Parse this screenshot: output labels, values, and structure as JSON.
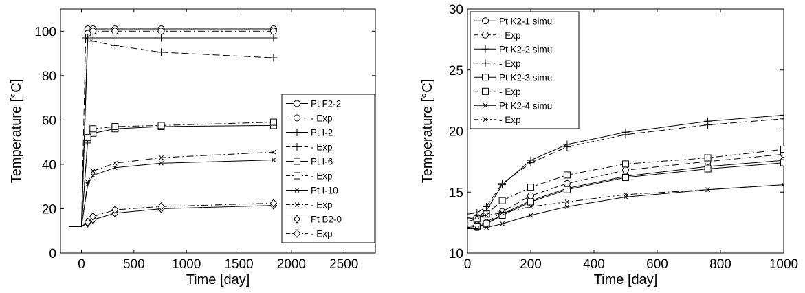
{
  "chart_data": [
    {
      "type": "line",
      "xlabel": "Time [day]",
      "ylabel": "Temperature [°C]",
      "xlim": [
        -200,
        2800
      ],
      "ylim": [
        0,
        110
      ],
      "xticks": [
        0,
        500,
        1000,
        1500,
        2000,
        2500
      ],
      "yticks": [
        0,
        20,
        40,
        60,
        80,
        100
      ],
      "grid": false,
      "legend_position": "right",
      "series": [
        {
          "name": "Pt F2-2",
          "marker": "circle",
          "dash": "solid",
          "x": [
            -120,
            0,
            60,
            110,
            320,
            760,
            1830
          ],
          "y": [
            12,
            12,
            101,
            101,
            101,
            101,
            101
          ]
        },
        {
          "name": "- Exp",
          "marker": "circle",
          "dash": "dashdot",
          "x": [
            -120,
            0,
            60,
            110,
            320,
            760,
            1830
          ],
          "y": [
            12,
            12,
            99,
            100,
            100,
            100,
            100
          ]
        },
        {
          "name": "Pt I-2",
          "marker": "plus",
          "dash": "solid",
          "x": [
            -120,
            0,
            60,
            110,
            320,
            760,
            1830
          ],
          "y": [
            12,
            12,
            97,
            97,
            97,
            97,
            97
          ]
        },
        {
          "name": "- Exp",
          "marker": "plus",
          "dash": "dashed",
          "x": [
            -120,
            0,
            40,
            110,
            320,
            760,
            1830
          ],
          "y": [
            12,
            12,
            97,
            95.5,
            93.5,
            90.5,
            88
          ]
        },
        {
          "name": "Pt I-6",
          "marker": "square",
          "dash": "solid",
          "x": [
            -120,
            0,
            60,
            110,
            320,
            760,
            1830
          ],
          "y": [
            12,
            12,
            51,
            54,
            56,
            57,
            57.5
          ]
        },
        {
          "name": "- Exp",
          "marker": "square",
          "dash": "dashdot",
          "x": [
            -120,
            0,
            60,
            110,
            320,
            760,
            1830
          ],
          "y": [
            12,
            12,
            52,
            56,
            57,
            57.5,
            59
          ]
        },
        {
          "name": "Pt I-10",
          "marker": "x",
          "dash": "solid",
          "x": [
            -120,
            0,
            60,
            110,
            320,
            760,
            1830
          ],
          "y": [
            12,
            12,
            31,
            35,
            38.5,
            40.5,
            42
          ]
        },
        {
          "name": "- Exp",
          "marker": "x",
          "dash": "dashdot",
          "x": [
            -120,
            0,
            60,
            110,
            320,
            760,
            1830
          ],
          "y": [
            12,
            12,
            32,
            37,
            40.5,
            43,
            45.5
          ]
        },
        {
          "name": "Pt B2-0",
          "marker": "diamond",
          "dash": "solid",
          "x": [
            -120,
            0,
            60,
            110,
            320,
            760,
            1830
          ],
          "y": [
            12,
            12,
            13.5,
            15,
            18,
            20,
            21.5
          ]
        },
        {
          "name": "- Exp",
          "marker": "diamond",
          "dash": "dashdot",
          "x": [
            -120,
            0,
            60,
            110,
            320,
            760,
            1830
          ],
          "y": [
            12,
            12,
            14,
            16.5,
            19.5,
            21,
            22.5
          ]
        }
      ]
    },
    {
      "type": "line",
      "xlabel": "Time [day]",
      "ylabel": "Temperature [°C]",
      "xlim": [
        0,
        1000
      ],
      "ylim": [
        10,
        30
      ],
      "xticks": [
        0,
        200,
        400,
        600,
        800,
        1000
      ],
      "yticks": [
        10,
        15,
        20,
        25,
        30
      ],
      "grid": false,
      "legend_position": "top-left",
      "series": [
        {
          "name": "Pt K2-1 simu",
          "marker": "circle",
          "dash": "solid",
          "x": [
            0,
            30,
            60,
            110,
            200,
            315,
            500,
            760,
            1000
          ],
          "y": [
            12,
            12.1,
            12.4,
            13.2,
            14.3,
            15.3,
            16.3,
            17.1,
            17.6
          ]
        },
        {
          "name": "- Exp",
          "marker": "circle",
          "dash": "dashed",
          "x": [
            0,
            30,
            60,
            110,
            200,
            315,
            500,
            760,
            1000
          ],
          "y": [
            12.2,
            12.3,
            12.5,
            13.4,
            14.7,
            15.7,
            16.8,
            17.5,
            18.1
          ]
        },
        {
          "name": "Pt K2-2 simu",
          "marker": "plus",
          "dash": "solid",
          "x": [
            0,
            30,
            60,
            110,
            200,
            315,
            500,
            760,
            1000
          ],
          "y": [
            12.8,
            12.9,
            13.5,
            15.6,
            17.6,
            18.9,
            19.9,
            20.8,
            21.3
          ]
        },
        {
          "name": "- Exp",
          "marker": "plus",
          "dash": "dashed",
          "x": [
            0,
            30,
            60,
            110,
            200,
            315,
            500,
            760,
            1000
          ],
          "y": [
            13.2,
            13.3,
            13.8,
            15.7,
            17.4,
            18.7,
            19.7,
            20.5,
            21.0
          ]
        },
        {
          "name": "Pt K2-3 simu",
          "marker": "square",
          "dash": "solid",
          "x": [
            0,
            30,
            60,
            110,
            200,
            315,
            500,
            760,
            1000
          ],
          "y": [
            12.1,
            12.2,
            12.4,
            13.1,
            14.2,
            15.2,
            16.2,
            16.9,
            17.4
          ]
        },
        {
          "name": "- Exp",
          "marker": "square",
          "dash": "dashdot",
          "x": [
            0,
            30,
            60,
            110,
            200,
            315,
            500,
            760,
            1000
          ],
          "y": [
            12.6,
            12.8,
            13.2,
            14.3,
            15.4,
            16.4,
            17.3,
            17.8,
            18.5
          ]
        },
        {
          "name": "Pt K2-4 simu",
          "marker": "x",
          "dash": "solid",
          "x": [
            0,
            30,
            60,
            110,
            200,
            315,
            500,
            760,
            1000
          ],
          "y": [
            12.0,
            12.0,
            12.1,
            12.4,
            13.1,
            13.8,
            14.6,
            15.2,
            15.6
          ]
        },
        {
          "name": "- Exp",
          "marker": "x",
          "dash": "dashdot",
          "x": [
            0,
            30,
            60,
            110,
            200,
            315,
            500,
            760,
            1000
          ],
          "y": [
            12.9,
            13.0,
            13.1,
            13.3,
            13.8,
            14.2,
            14.8,
            15.2,
            15.6
          ]
        }
      ]
    }
  ]
}
